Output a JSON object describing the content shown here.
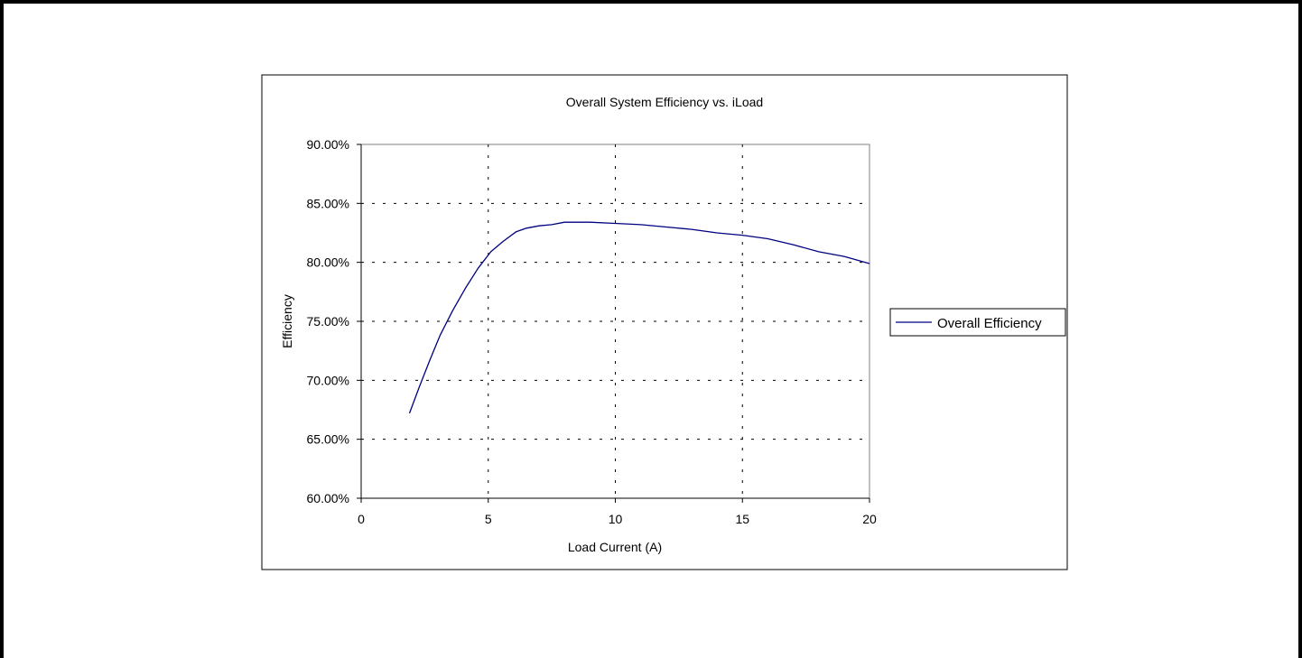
{
  "chart_data": {
    "type": "line",
    "title": "Overall System Efficiency vs. iLoad",
    "xlabel": "Load Current (A)",
    "ylabel": "Efficiency",
    "xlim": [
      0,
      20
    ],
    "ylim": [
      0.6,
      0.9
    ],
    "x_ticks": [
      0,
      5,
      10,
      15,
      20
    ],
    "x_tick_labels": [
      "0",
      "5",
      "10",
      "15",
      "20"
    ],
    "y_ticks": [
      0.6,
      0.65,
      0.7,
      0.75,
      0.8,
      0.85,
      0.9
    ],
    "y_tick_labels": [
      "60.00%",
      "65.00%",
      "70.00%",
      "75.00%",
      "80.00%",
      "85.00%",
      "90.00%"
    ],
    "grid": true,
    "legend_position": "right",
    "series": [
      {
        "name": "Overall Efficiency",
        "color": "#000080",
        "x": [
          1.9,
          2.3,
          2.7,
          3.1,
          3.6,
          4.1,
          4.6,
          5.1,
          5.6,
          6.1,
          6.5,
          7.0,
          7.5,
          8.0,
          8.5,
          9.0,
          10.0,
          11.0,
          12.0,
          13.0,
          14.0,
          15.0,
          16.0,
          17.0,
          18.0,
          19.0,
          20.0
        ],
        "y": [
          0.672,
          0.695,
          0.717,
          0.738,
          0.759,
          0.778,
          0.795,
          0.809,
          0.818,
          0.826,
          0.829,
          0.831,
          0.832,
          0.834,
          0.834,
          0.834,
          0.833,
          0.832,
          0.83,
          0.828,
          0.825,
          0.823,
          0.82,
          0.815,
          0.809,
          0.805,
          0.799
        ]
      }
    ]
  }
}
